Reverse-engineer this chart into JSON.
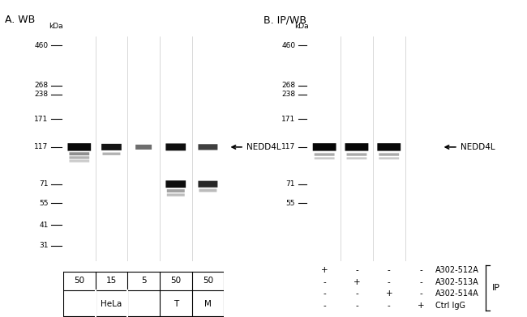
{
  "fig_width": 6.5,
  "fig_height": 3.92,
  "bg_color": "#ffffff",
  "panel_A_title": "A. WB",
  "panel_B_title": "B. IP/WB",
  "kda_label": "kDa",
  "mw_positions_A": [
    460,
    268,
    238,
    171,
    117,
    71,
    55,
    41,
    31
  ],
  "mw_labels_A": [
    "460",
    "268",
    "238",
    "171",
    "117",
    "71",
    "55",
    "41",
    "31"
  ],
  "mw_positions_B": [
    460,
    268,
    238,
    171,
    117,
    71,
    55
  ],
  "mw_labels_B": [
    "460",
    "268",
    "238",
    "171",
    "117",
    "71",
    "55"
  ],
  "mw_log_min": 25,
  "mw_log_max": 520,
  "nedd4l_label": "←NEDD4L",
  "nedd4l_mw": 117,
  "panel_A_cols": [
    "50",
    "15",
    "5",
    "50",
    "50"
  ],
  "panel_B_row_labels": [
    "A302-512A",
    "A302-513A",
    "A302-514A",
    "Ctrl IgG"
  ],
  "panel_B_plus_minus": [
    [
      "+",
      "-",
      "-",
      "-"
    ],
    [
      "-",
      "+",
      "-",
      "-"
    ],
    [
      "-",
      "-",
      "+",
      "-"
    ],
    [
      "-",
      "-",
      "-",
      "+"
    ]
  ],
  "ip_label": "IP",
  "gel_bg_A": "#e8e6e6",
  "gel_bg_B": "#e8e6e6",
  "band_very_dark": "#0a0a0a",
  "band_dark": "#1a1a1a",
  "band_mid": "#444444",
  "band_light": "#777777",
  "band_lighter": "#999999"
}
